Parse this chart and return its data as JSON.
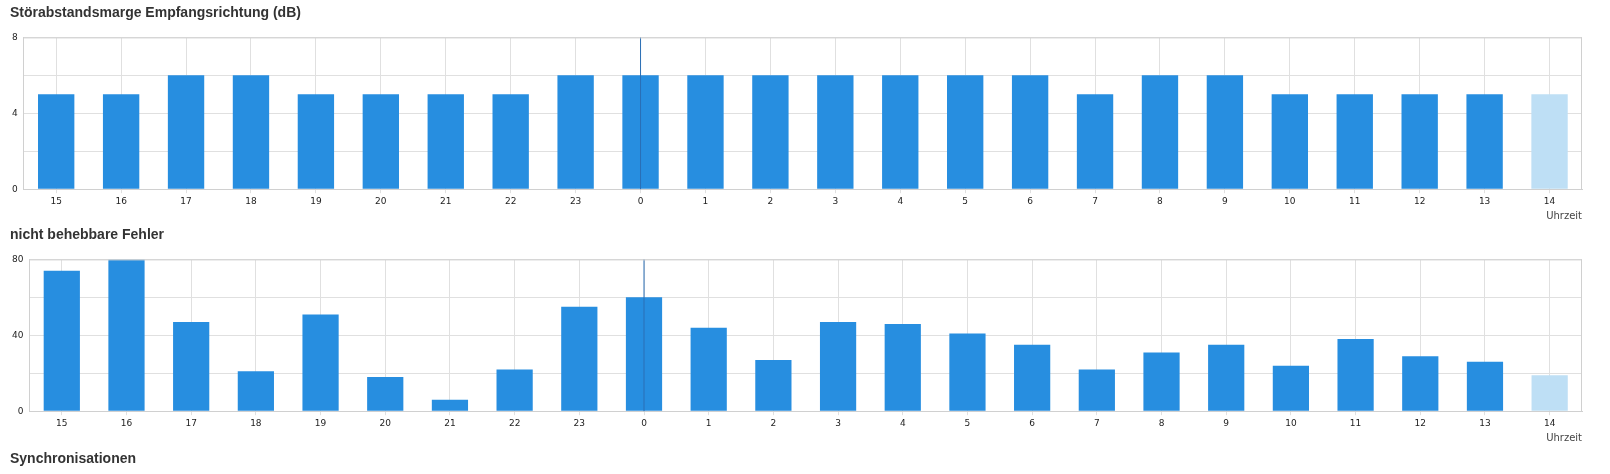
{
  "chart_data": [
    {
      "type": "bar",
      "title": "Störabstandsmarge Empfangsrichtung (dB)",
      "xlabel": "Uhrzeit",
      "categories": [
        "15",
        "16",
        "17",
        "18",
        "19",
        "20",
        "21",
        "22",
        "23",
        "0",
        "1",
        "2",
        "3",
        "4",
        "5",
        "6",
        "7",
        "8",
        "9",
        "10",
        "11",
        "12",
        "13",
        "14"
      ],
      "values": [
        5,
        5,
        6,
        6,
        5,
        5,
        5,
        5,
        6,
        6,
        6,
        6,
        6,
        6,
        6,
        6,
        5,
        6,
        6,
        5,
        5,
        5,
        5,
        5
      ],
      "colors": [
        "#278ee0",
        "#278ee0",
        "#278ee0",
        "#278ee0",
        "#278ee0",
        "#278ee0",
        "#278ee0",
        "#278ee0",
        "#278ee0",
        "#278ee0",
        "#278ee0",
        "#278ee0",
        "#278ee0",
        "#278ee0",
        "#278ee0",
        "#278ee0",
        "#278ee0",
        "#278ee0",
        "#278ee0",
        "#278ee0",
        "#278ee0",
        "#278ee0",
        "#278ee0",
        "#bedff5"
      ],
      "ylim": [
        0,
        8
      ],
      "yticks": [
        0,
        {
          "value": 2,
          "label": null
        },
        4,
        {
          "value": 6,
          "label": null
        },
        8
      ],
      "grid": true,
      "legend": false,
      "ref_lines": [
        {
          "axis": "x",
          "value": "0",
          "color": "#2a6fb5"
        }
      ]
    },
    {
      "type": "bar",
      "title": "nicht behebbare Fehler",
      "xlabel": "Uhrzeit",
      "categories": [
        "15",
        "16",
        "17",
        "18",
        "19",
        "20",
        "21",
        "22",
        "23",
        "0",
        "1",
        "2",
        "3",
        "4",
        "5",
        "6",
        "7",
        "8",
        "9",
        "10",
        "11",
        "12",
        "13",
        "14"
      ],
      "values": [
        74,
        80,
        47,
        21,
        51,
        18,
        6,
        22,
        55,
        60,
        44,
        27,
        47,
        46,
        41,
        35,
        22,
        31,
        35,
        24,
        38,
        29,
        26,
        19
      ],
      "colors": [
        "#278ee0",
        "#278ee0",
        "#278ee0",
        "#278ee0",
        "#278ee0",
        "#278ee0",
        "#278ee0",
        "#278ee0",
        "#278ee0",
        "#278ee0",
        "#278ee0",
        "#278ee0",
        "#278ee0",
        "#278ee0",
        "#278ee0",
        "#278ee0",
        "#278ee0",
        "#278ee0",
        "#278ee0",
        "#278ee0",
        "#278ee0",
        "#278ee0",
        "#278ee0",
        "#bedff5"
      ],
      "ylim": [
        0,
        80
      ],
      "yticks": [
        0,
        {
          "value": 20,
          "label": null
        },
        40,
        {
          "value": 60,
          "label": null
        },
        80
      ],
      "grid": true,
      "legend": false,
      "ref_lines": [
        {
          "axis": "x",
          "value": "0",
          "color": "#2a6fb5"
        }
      ]
    },
    {
      "type": "other",
      "title": "Synchronisationen"
    }
  ]
}
